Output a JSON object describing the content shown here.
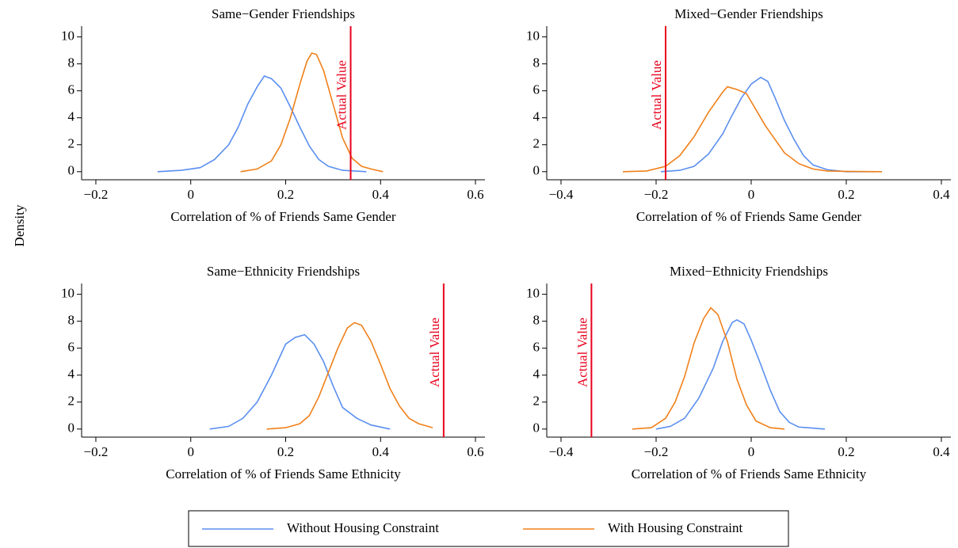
{
  "y_label": "Density",
  "chart_data": [
    {
      "type": "line",
      "title": "Same−Gender Friendships",
      "x_label": "Correlation of % of Friends Same Gender",
      "xlim": [
        -0.23,
        0.62
      ],
      "ylim": [
        -0.6,
        10.8
      ],
      "xticks": [
        {
          "value": -0.2,
          "label": "−0.2"
        },
        0,
        0.2,
        0.4,
        0.6
      ],
      "yticks": [
        0,
        2,
        4,
        6,
        8,
        10
      ],
      "reference_line": {
        "value": 0.337,
        "label": "Actual Value",
        "color": "#e8001c"
      },
      "series": [
        {
          "name": "Without Housing Constraint",
          "color": "#5b8ff0",
          "x": [
            -0.07,
            -0.02,
            0.02,
            0.05,
            0.08,
            0.1,
            0.12,
            0.14,
            0.155,
            0.17,
            0.19,
            0.21,
            0.23,
            0.25,
            0.27,
            0.29,
            0.32,
            0.37
          ],
          "values": [
            0,
            0.1,
            0.3,
            0.9,
            2.0,
            3.3,
            5.0,
            6.3,
            7.1,
            6.9,
            6.2,
            4.8,
            3.3,
            1.9,
            0.9,
            0.4,
            0.1,
            0
          ]
        },
        {
          "name": "With Housing Constraint",
          "color": "#f0801a",
          "x": [
            0.105,
            0.14,
            0.17,
            0.19,
            0.21,
            0.23,
            0.245,
            0.255,
            0.265,
            0.28,
            0.3,
            0.32,
            0.34,
            0.36,
            0.38,
            0.405
          ],
          "values": [
            0,
            0.2,
            0.8,
            2.0,
            4.0,
            6.5,
            8.2,
            8.8,
            8.7,
            7.5,
            5.0,
            2.5,
            1.0,
            0.4,
            0.2,
            0
          ]
        }
      ]
    },
    {
      "type": "line",
      "title": "Mixed−Gender Friendships",
      "x_label": "Correlation of % of Friends Same Gender",
      "xlim": [
        -0.43,
        0.42
      ],
      "ylim": [
        -0.6,
        10.8
      ],
      "xticks": [
        {
          "value": -0.4,
          "label": "−0.4"
        },
        {
          "value": -0.2,
          "label": "−0.2"
        },
        0,
        0.2,
        0.4
      ],
      "yticks": [
        0,
        2,
        4,
        6,
        8,
        10
      ],
      "reference_line": {
        "value": -0.18,
        "label": "Actual Value",
        "color": "#e8001c"
      },
      "series": [
        {
          "color": "#5b8ff0",
          "x": [
            -0.19,
            -0.15,
            -0.12,
            -0.09,
            -0.06,
            -0.04,
            -0.02,
            0,
            0.02,
            0.035,
            0.05,
            0.07,
            0.09,
            0.11,
            0.13,
            0.16,
            0.2,
            0.26
          ],
          "values": [
            0,
            0.1,
            0.4,
            1.3,
            2.8,
            4.2,
            5.5,
            6.5,
            7.0,
            6.7,
            5.5,
            3.8,
            2.4,
            1.2,
            0.5,
            0.15,
            0,
            0
          ]
        },
        {
          "color": "#f0801a",
          "x": [
            -0.27,
            -0.22,
            -0.18,
            -0.15,
            -0.12,
            -0.09,
            -0.06,
            -0.05,
            -0.03,
            -0.01,
            0.01,
            0.03,
            0.05,
            0.07,
            0.1,
            0.13,
            0.16,
            0.2,
            0.275
          ],
          "values": [
            0,
            0.05,
            0.4,
            1.2,
            2.6,
            4.4,
            5.9,
            6.3,
            6.1,
            5.8,
            4.6,
            3.4,
            2.4,
            1.4,
            0.6,
            0.2,
            0.05,
            0.02,
            0
          ]
        }
      ]
    },
    {
      "type": "line",
      "title": "Same−Ethnicity Friendships",
      "x_label": "Correlation of % of Friends Same Ethnicity",
      "xlim": [
        -0.23,
        0.62
      ],
      "ylim": [
        -0.6,
        10.8
      ],
      "xticks": [
        {
          "value": -0.2,
          "label": "−0.2"
        },
        0,
        0.2,
        0.4,
        0.6
      ],
      "yticks": [
        0,
        2,
        4,
        6,
        8,
        10
      ],
      "reference_line": {
        "value": 0.533,
        "label": "Actual Value",
        "color": "#e8001c"
      },
      "series": [
        {
          "color": "#5b8ff0",
          "x": [
            0.04,
            0.08,
            0.11,
            0.14,
            0.17,
            0.2,
            0.22,
            0.24,
            0.26,
            0.28,
            0.3,
            0.32,
            0.35,
            0.38,
            0.42
          ],
          "values": [
            0,
            0.2,
            0.8,
            2.0,
            4.0,
            6.3,
            6.8,
            7.0,
            6.3,
            5.0,
            3.2,
            1.6,
            0.8,
            0.3,
            0
          ]
        },
        {
          "color": "#f0801a",
          "x": [
            0.16,
            0.2,
            0.23,
            0.25,
            0.27,
            0.29,
            0.31,
            0.33,
            0.345,
            0.36,
            0.38,
            0.4,
            0.42,
            0.44,
            0.46,
            0.48,
            0.51
          ],
          "values": [
            0,
            0.1,
            0.4,
            1.0,
            2.4,
            4.2,
            6.0,
            7.5,
            7.9,
            7.7,
            6.5,
            4.8,
            3.0,
            1.7,
            0.8,
            0.4,
            0.1
          ]
        }
      ]
    },
    {
      "type": "line",
      "title": "Mixed−Ethnicity Friendships",
      "x_label": "Correlation of % of Friends Same Ethnicity",
      "xlim": [
        -0.43,
        0.42
      ],
      "ylim": [
        -0.6,
        10.8
      ],
      "xticks": [
        {
          "value": -0.4,
          "label": "−0.4"
        },
        {
          "value": -0.2,
          "label": "−0.2"
        },
        0,
        0.2,
        0.4
      ],
      "yticks": [
        0,
        2,
        4,
        6,
        8,
        10
      ],
      "reference_line": {
        "value": -0.336,
        "label": "Actual Value",
        "color": "#e8001c"
      },
      "series": [
        {
          "color": "#5b8ff0",
          "x": [
            -0.2,
            -0.17,
            -0.14,
            -0.11,
            -0.08,
            -0.06,
            -0.04,
            -0.03,
            -0.015,
            0,
            0.02,
            0.04,
            0.06,
            0.08,
            0.1,
            0.155
          ],
          "values": [
            0,
            0.2,
            0.8,
            2.3,
            4.5,
            6.5,
            7.9,
            8.1,
            7.8,
            6.6,
            4.8,
            2.9,
            1.3,
            0.5,
            0.15,
            0
          ]
        },
        {
          "color": "#f0801a",
          "x": [
            -0.25,
            -0.21,
            -0.18,
            -0.16,
            -0.14,
            -0.12,
            -0.1,
            -0.085,
            -0.07,
            -0.05,
            -0.03,
            -0.01,
            0.01,
            0.04,
            0.07
          ],
          "values": [
            0,
            0.1,
            0.8,
            2.0,
            3.9,
            6.4,
            8.2,
            9.0,
            8.5,
            6.5,
            3.7,
            1.8,
            0.6,
            0.1,
            0
          ]
        }
      ]
    }
  ]
}
